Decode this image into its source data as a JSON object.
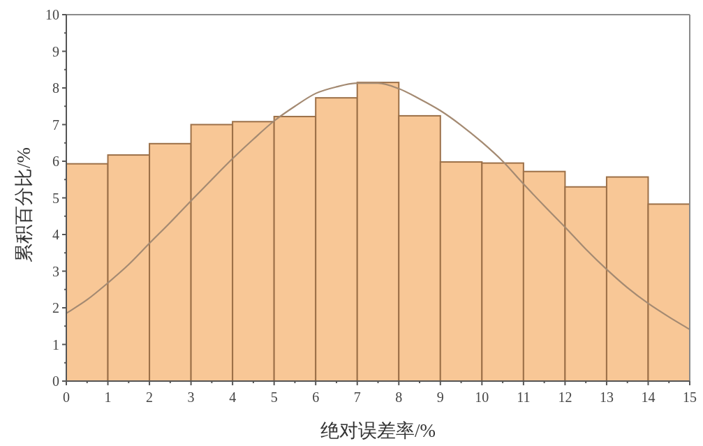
{
  "chart_data": {
    "type": "histogram",
    "xlabel": "绝对误差率/%",
    "ylabel": "累积百分比/%",
    "bins": [
      0,
      1,
      2,
      3,
      4,
      5,
      6,
      7,
      8,
      9,
      10,
      11,
      12,
      13,
      14,
      15
    ],
    "values": [
      5.93,
      6.17,
      6.48,
      7.0,
      7.08,
      7.22,
      7.73,
      8.15,
      7.24,
      5.98,
      5.95,
      5.72,
      5.3,
      5.57,
      4.83
    ],
    "color": "#f8c796",
    "series": [
      {
        "type": "line",
        "color": "#a48a72",
        "x": [
          0,
          0.5,
          1,
          1.5,
          2,
          2.5,
          3,
          3.5,
          4,
          4.5,
          5,
          5.5,
          6,
          6.5,
          7,
          7.5,
          8,
          8.5,
          9,
          9.5,
          10,
          10.5,
          11,
          11.5,
          12,
          12.5,
          13,
          13.5,
          14,
          14.5,
          15
        ],
        "values": [
          1.85,
          2.22,
          2.68,
          3.18,
          3.76,
          4.33,
          4.92,
          5.5,
          6.07,
          6.6,
          7.1,
          7.5,
          7.85,
          8.03,
          8.13,
          8.13,
          7.98,
          7.7,
          7.38,
          6.98,
          6.52,
          6.0,
          5.38,
          4.78,
          4.2,
          3.6,
          3.05,
          2.55,
          2.12,
          1.75,
          1.41
        ]
      }
    ],
    "xlim": [
      0,
      15
    ],
    "ylim": [
      0,
      10
    ],
    "xticks": [
      0,
      {
        "value": 0.5,
        "label": null
      },
      1,
      {
        "value": 1.5,
        "label": null
      },
      2,
      {
        "value": 2.5,
        "label": null
      },
      3,
      {
        "value": 3.5,
        "label": null
      },
      4,
      {
        "value": 4.5,
        "label": null
      },
      5,
      {
        "value": 5.5,
        "label": null
      },
      6,
      {
        "value": 6.5,
        "label": null
      },
      7,
      {
        "value": 7.5,
        "label": null
      },
      8,
      {
        "value": 8.5,
        "label": null
      },
      9,
      {
        "value": 9.5,
        "label": null
      },
      10,
      {
        "value": 10.5,
        "label": null
      },
      11,
      {
        "value": 11.5,
        "label": null
      },
      12,
      {
        "value": 12.5,
        "label": null
      },
      13,
      {
        "value": 13.5,
        "label": null
      },
      14,
      {
        "value": 14.5,
        "label": null
      },
      15
    ],
    "yticks": [
      0,
      {
        "value": 0.5,
        "label": null
      },
      1,
      {
        "value": 1.5,
        "label": null
      },
      2,
      {
        "value": 2.5,
        "label": null
      },
      3,
      {
        "value": 3.5,
        "label": null
      },
      4,
      {
        "value": 4.5,
        "label": null
      },
      5,
      {
        "value": 5.5,
        "label": null
      },
      6,
      {
        "value": 6.5,
        "label": null
      },
      7,
      {
        "value": 7.5,
        "label": null
      },
      8,
      {
        "value": 8.5,
        "label": null
      },
      9,
      {
        "value": 9.5,
        "label": null
      },
      10
    ]
  }
}
